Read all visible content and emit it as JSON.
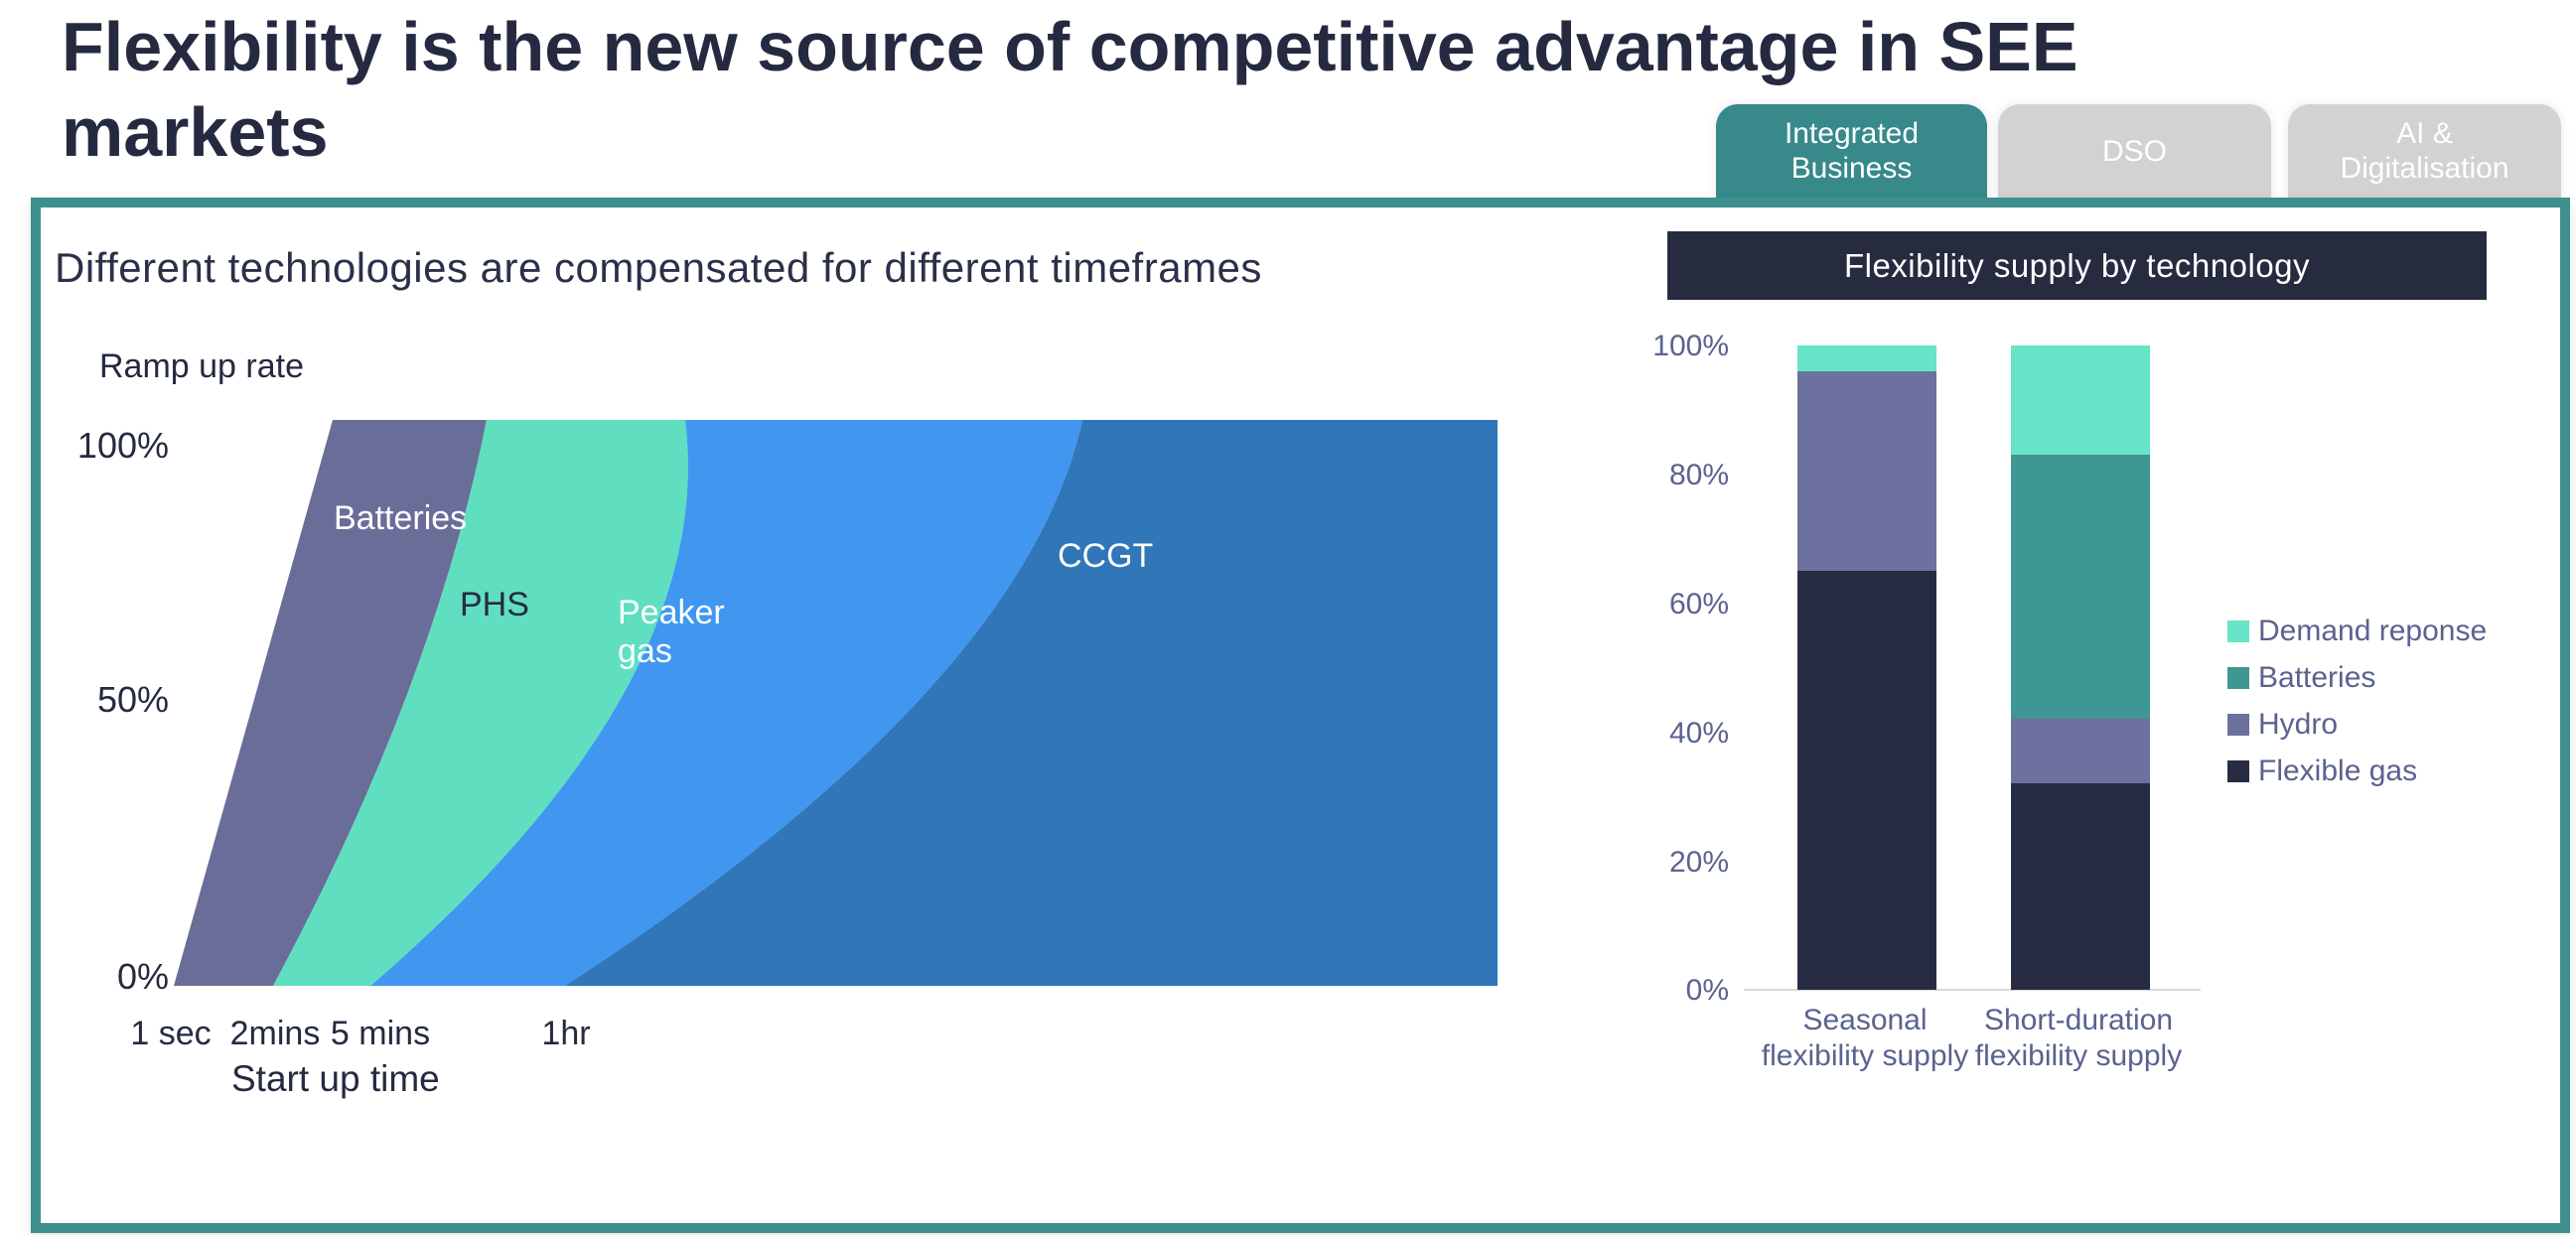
{
  "slide": {
    "title_line1": "Flexibility is the new source of competitive advantage in SEE",
    "title_line2": "markets"
  },
  "tabs": [
    {
      "label_line1": "Integrated",
      "label_line2": "Business",
      "active": true
    },
    {
      "label_line1": "DSO",
      "label_line2": "",
      "active": false
    },
    {
      "label_line1": "AI &",
      "label_line2": "Digitalisation",
      "active": false
    }
  ],
  "colors": {
    "accent_teal": "#37898a",
    "panel_border_teal": "#3d908d",
    "tab_inactive_gray": "#d2d2d2",
    "title_navy": "#252a41",
    "header_bar_navy": "#262b3f",
    "right_chart_text": "#5a628f"
  },
  "left_chart": {
    "title": "Different technologies are compensated for different timeframes",
    "y_axis_title": "Ramp up rate",
    "x_axis_title": "Start up time",
    "y_ticks": [
      "100%",
      "50%",
      "0%"
    ],
    "x_ticks": [
      "1 sec",
      "2mins",
      "5 mins",
      "1hr"
    ]
  },
  "right_chart": {
    "title": "Flexibility supply by technology",
    "y_ticks": [
      "100%",
      "80%",
      "60%",
      "40%",
      "20%",
      "0%"
    ],
    "categories": [
      {
        "line1": "Seasonal",
        "line2": "flexibility supply"
      },
      {
        "line1": "Short-duration",
        "line2": "flexibility supply"
      }
    ],
    "legend": [
      {
        "label": "Demand reponse",
        "color": "#67e3c7"
      },
      {
        "label": "Batteries",
        "color": "#3f9793"
      },
      {
        "label": "Hydro",
        "color": "#6d71a0"
      },
      {
        "label": "Flexible gas",
        "color": "#282c43"
      }
    ]
  },
  "chart_data": [
    {
      "type": "area",
      "title": "Different technologies are compensated for different timeframes",
      "xlabel": "Start up time",
      "ylabel": "Ramp up rate",
      "x_ticks": [
        "1 sec",
        "2mins",
        "5 mins",
        "1hr"
      ],
      "y_ticks": [
        "0%",
        "50%",
        "100%"
      ],
      "ylim_percent": [
        0,
        100
      ],
      "areas": [
        {
          "name": "Batteries",
          "color": "#6a6d97",
          "start_up_time": "1 sec",
          "ramp_up_rate_max": "100%"
        },
        {
          "name": "PHS",
          "color": "#5fdfc0",
          "start_up_time": "2mins",
          "ramp_up_rate_max": "100%"
        },
        {
          "name": "Peaker gas",
          "color": "#4197f0",
          "start_up_time": "5 mins",
          "ramp_up_rate_max": "100%"
        },
        {
          "name": "CCGT",
          "color": "#3076b8",
          "start_up_time": "1hr",
          "ramp_up_rate_max": "100%"
        }
      ]
    },
    {
      "type": "bar",
      "stacked": true,
      "title": "Flexibility supply by technology",
      "categories": [
        "Seasonal flexibility supply",
        "Short-duration flexibility supply"
      ],
      "series": [
        {
          "name": "Flexible gas",
          "color": "#282c43",
          "values": [
            65,
            32
          ]
        },
        {
          "name": "Hydro",
          "color": "#6d71a0",
          "values": [
            31,
            10
          ]
        },
        {
          "name": "Batteries",
          "color": "#3f9793",
          "values": [
            0,
            41
          ]
        },
        {
          "name": "Demand reponse",
          "color": "#67e3c7",
          "values": [
            4,
            17
          ]
        }
      ],
      "ylim": [
        0,
        100
      ],
      "y_ticks": [
        "0%",
        "20%",
        "40%",
        "60%",
        "80%",
        "100%"
      ],
      "legend_position": "right",
      "grid": false
    }
  ]
}
